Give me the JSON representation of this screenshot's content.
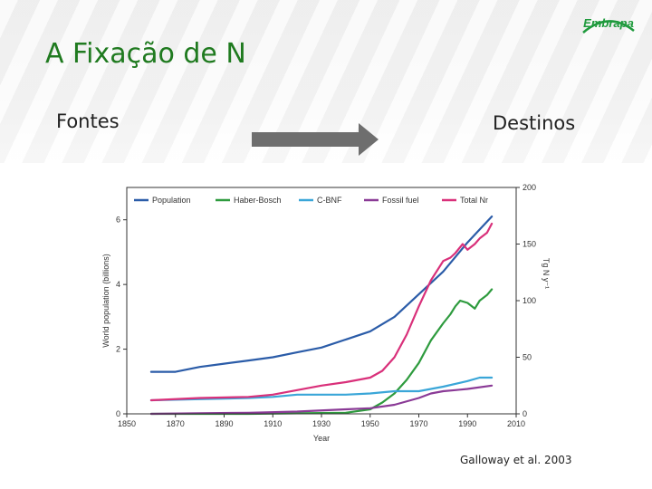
{
  "slide": {
    "title": "A Fixação de N",
    "left_label": "Fontes",
    "right_label": "Destinos",
    "citation": "Galloway et al. 2003",
    "logo_text": "Embrapa"
  },
  "colors": {
    "title": "#1f7a1f",
    "logo": "#1e9a3c",
    "arrow": "#6e6e6e"
  },
  "chart_data": {
    "type": "line",
    "xlabel": "Year",
    "ylabel": "World population (billions)",
    "ylabel_right": "Tg N y⁻¹",
    "xlim": [
      1850,
      2010
    ],
    "ylim": [
      0,
      7
    ],
    "ylim_right": [
      0,
      200
    ],
    "x_ticks": [
      1850,
      1870,
      1890,
      1910,
      1930,
      1950,
      1970,
      1990,
      2010
    ],
    "y_ticks": [
      0,
      2,
      4,
      6
    ],
    "y_ticks_right": [
      0,
      50,
      100,
      150,
      200
    ],
    "grid": false,
    "legend_position": "top",
    "series": [
      {
        "name": "Population",
        "color": "#2b5ca8",
        "axis": "left",
        "x": [
          1860,
          1870,
          1880,
          1890,
          1900,
          1910,
          1920,
          1930,
          1940,
          1950,
          1960,
          1970,
          1980,
          1990,
          2000
        ],
        "y": [
          1.3,
          1.3,
          1.45,
          1.55,
          1.65,
          1.75,
          1.9,
          2.05,
          2.3,
          2.55,
          3.0,
          3.7,
          4.4,
          5.3,
          6.1
        ]
      },
      {
        "name": "Haber-Bosch",
        "color": "#2e9b3e",
        "axis": "right",
        "x": [
          1860,
          1900,
          1920,
          1940,
          1950,
          1955,
          1960,
          1965,
          1970,
          1975,
          1980,
          1983,
          1985,
          1987,
          1990,
          1993,
          1995,
          1998,
          2000
        ],
        "y": [
          0,
          0,
          0.5,
          1,
          4,
          10,
          18,
          30,
          45,
          65,
          80,
          88,
          95,
          100,
          98,
          93,
          100,
          105,
          110
        ]
      },
      {
        "name": "C-BNF",
        "color": "#3aa6d8",
        "axis": "right",
        "x": [
          1860,
          1880,
          1900,
          1910,
          1920,
          1930,
          1940,
          1950,
          1960,
          1970,
          1980,
          1990,
          1995,
          2000
        ],
        "y": [
          12,
          13,
          14,
          15,
          17,
          17,
          17,
          18,
          20,
          20,
          24,
          29,
          32,
          32
        ]
      },
      {
        "name": "Fossil fuel",
        "color": "#8a3a96",
        "axis": "right",
        "x": [
          1860,
          1880,
          1900,
          1920,
          1940,
          1950,
          1960,
          1970,
          1975,
          1980,
          1985,
          1990,
          2000
        ],
        "y": [
          0,
          0.5,
          1,
          2,
          4,
          5,
          8,
          14,
          18,
          20,
          21,
          22,
          25
        ]
      },
      {
        "name": "Total Nr",
        "color": "#d9307a",
        "axis": "right",
        "x": [
          1860,
          1880,
          1900,
          1910,
          1920,
          1930,
          1940,
          1950,
          1955,
          1960,
          1965,
          1970,
          1975,
          1980,
          1983,
          1985,
          1988,
          1990,
          1993,
          1995,
          1998,
          2000
        ],
        "y": [
          12,
          14,
          15,
          17,
          21,
          25,
          28,
          32,
          38,
          50,
          70,
          95,
          118,
          135,
          138,
          142,
          150,
          145,
          150,
          155,
          160,
          168
        ]
      }
    ]
  }
}
